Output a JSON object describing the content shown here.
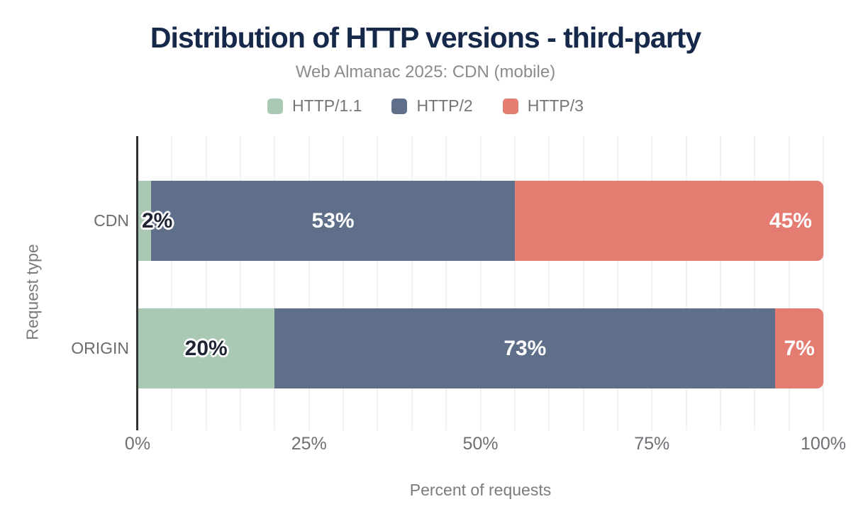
{
  "header": {
    "title_color": "#16294b",
    "subtitle_color": "#8b8b8b"
  },
  "chart_data": {
    "type": "bar",
    "orientation": "horizontal",
    "stacked": true,
    "title": "Distribution of HTTP versions - third-party",
    "subtitle": "Web Almanac 2025: CDN (mobile)",
    "categories": [
      "CDN",
      "ORIGIN"
    ],
    "series": [
      {
        "name": "HTTP/1.1",
        "color": "#aac9b5",
        "values": [
          2,
          20
        ]
      },
      {
        "name": "HTTP/2",
        "color": "#5f6f89",
        "values": [
          53,
          73
        ]
      },
      {
        "name": "HTTP/3",
        "color": "#e57c72",
        "values": [
          45,
          7
        ]
      }
    ],
    "bar_labels": [
      [
        "2%",
        "53%",
        "45%"
      ],
      [
        "20%",
        "73%",
        "7%"
      ]
    ],
    "xlabel": "Percent of requests",
    "ylabel": "Request type",
    "xlim": [
      0,
      100
    ],
    "xticks": [
      "0%",
      "25%",
      "50%",
      "75%",
      "100%"
    ],
    "xtick_values": [
      0,
      25,
      50,
      75,
      100
    ],
    "grid": "vertical minor gridlines every 5%",
    "legend_position": "top",
    "label_layout": [
      [
        "overflow-start",
        "center",
        "end"
      ],
      [
        "center",
        "center",
        "center"
      ]
    ]
  }
}
